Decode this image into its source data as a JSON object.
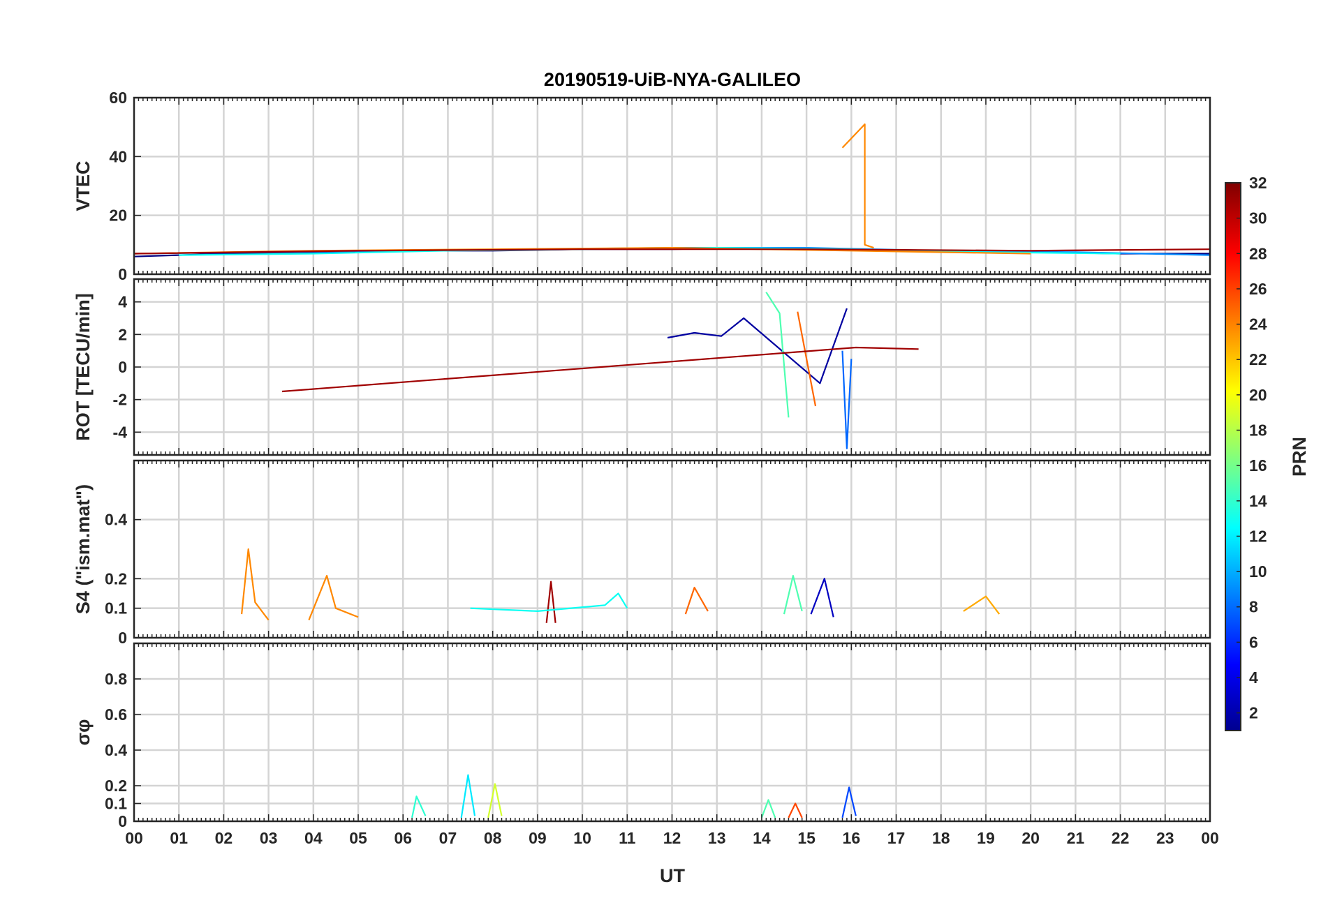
{
  "chart_data": {
    "type": "line",
    "title": "20190519-UiB-NYA-GALILEO",
    "xlabel": "UT",
    "x_ticks": [
      "00",
      "01",
      "02",
      "03",
      "04",
      "05",
      "06",
      "07",
      "08",
      "09",
      "10",
      "11",
      "12",
      "13",
      "14",
      "15",
      "16",
      "17",
      "18",
      "19",
      "20",
      "21",
      "22",
      "23",
      "00"
    ],
    "xlim": [
      0,
      24
    ],
    "panels": [
      {
        "id": "vtec",
        "ylabel": "VTEC",
        "ylim": [
          0,
          60
        ],
        "yticks": [
          "0",
          "20",
          "40",
          "60"
        ],
        "series": [
          {
            "color_prn": 1,
            "x": [
              0,
              2,
              4,
              6,
              8,
              10,
              12,
              14,
              16,
              18,
              20,
              22,
              24
            ],
            "y": [
              6,
              7,
              7.5,
              8,
              8,
              8.5,
              8.5,
              9,
              8.5,
              8,
              7.5,
              7,
              7
            ]
          },
          {
            "color_prn": 9,
            "x": [
              0,
              3,
              6,
              9,
              12,
              15,
              18,
              21,
              24
            ],
            "y": [
              7,
              7.5,
              8,
              8.5,
              9,
              9,
              8,
              7.5,
              6.5
            ]
          },
          {
            "color_prn": 13,
            "x": [
              1,
              4,
              7,
              10,
              13,
              16,
              19,
              22
            ],
            "y": [
              6.5,
              7,
              8,
              8.5,
              9,
              8.5,
              7.5,
              7
            ]
          },
          {
            "color_prn": 24,
            "x": [
              15.8,
              16.3,
              16.3,
              16.5
            ],
            "y": [
              43,
              51,
              10,
              9
            ]
          },
          {
            "color_prn": 24,
            "x": [
              0,
              4,
              8,
              12,
              16,
              20
            ],
            "y": [
              7,
              8,
              8.5,
              9,
              8,
              7
            ]
          },
          {
            "color_prn": 31,
            "x": [
              0,
              5,
              10,
              15,
              20,
              24
            ],
            "y": [
              7,
              8,
              8.5,
              8.5,
              8,
              8.5
            ]
          }
        ]
      },
      {
        "id": "rot",
        "ylabel": "ROT [TECU/min]",
        "ylim": [
          -5.4,
          5.4
        ],
        "yticks": [
          "-4",
          "-2",
          "0",
          "2",
          "4"
        ],
        "series": [
          {
            "color_prn": 2,
            "x": [
              11.9,
              12.5,
              13.1,
              13.6,
              15.3,
              15.9
            ],
            "y": [
              1.8,
              2.1,
              1.9,
              3.0,
              -1.0,
              3.6
            ]
          },
          {
            "color_prn": 8,
            "x": [
              15.8,
              15.9,
              16.0
            ],
            "y": [
              1.0,
              -5.0,
              0.5
            ]
          },
          {
            "color_prn": 15,
            "x": [
              14.1,
              14.4,
              14.6
            ],
            "y": [
              4.6,
              3.3,
              -3.1
            ]
          },
          {
            "color_prn": 25,
            "x": [
              14.8,
              15.2
            ],
            "y": [
              3.4,
              -2.4
            ]
          },
          {
            "color_prn": 31,
            "x": [
              3.3,
              16.1,
              17.5
            ],
            "y": [
              -1.5,
              1.2,
              1.1
            ]
          }
        ]
      },
      {
        "id": "s4",
        "ylabel": "S4 (\"ism.mat\")",
        "ylim": [
          0,
          0.6
        ],
        "yticks": [
          "0",
          "0.1",
          "0.2",
          "0.4"
        ],
        "series": [
          {
            "color_prn": 24,
            "x": [
              2.4,
              2.55,
              2.7,
              3.0
            ],
            "y": [
              0.08,
              0.3,
              0.12,
              0.06
            ]
          },
          {
            "color_prn": 24,
            "x": [
              3.9,
              4.3,
              4.5,
              5.0
            ],
            "y": [
              0.06,
              0.21,
              0.1,
              0.07
            ]
          },
          {
            "color_prn": 31,
            "x": [
              9.2,
              9.3,
              9.4
            ],
            "y": [
              0.05,
              0.19,
              0.05
            ]
          },
          {
            "color_prn": 15,
            "x": [
              14.5,
              14.7,
              14.9
            ],
            "y": [
              0.08,
              0.21,
              0.09
            ]
          },
          {
            "color_prn": 3,
            "x": [
              15.1,
              15.4,
              15.6
            ],
            "y": [
              0.08,
              0.2,
              0.07
            ]
          },
          {
            "color_prn": 13,
            "x": [
              7.5,
              9.0,
              10.5,
              10.8,
              11.0
            ],
            "y": [
              0.1,
              0.09,
              0.11,
              0.15,
              0.1
            ]
          },
          {
            "color_prn": 25,
            "x": [
              12.3,
              12.5,
              12.8
            ],
            "y": [
              0.08,
              0.17,
              0.09
            ]
          },
          {
            "color_prn": 23,
            "x": [
              18.5,
              19.0,
              19.3
            ],
            "y": [
              0.09,
              0.14,
              0.08
            ]
          }
        ]
      },
      {
        "id": "sigma_phi",
        "ylabel": "σφ",
        "ylim": [
          0,
          1.0
        ],
        "yticks": [
          "0",
          "0.1",
          "0.2",
          "0.4",
          "0.6",
          "0.8"
        ],
        "series": [
          {
            "color_prn": 12,
            "x": [
              7.3,
              7.45,
              7.6
            ],
            "y": [
              0.02,
              0.26,
              0.03
            ]
          },
          {
            "color_prn": 19,
            "x": [
              7.9,
              8.05,
              8.2
            ],
            "y": [
              0.02,
              0.21,
              0.03
            ]
          },
          {
            "color_prn": 7,
            "x": [
              15.8,
              15.95,
              16.1
            ],
            "y": [
              0.02,
              0.19,
              0.03
            ]
          },
          {
            "color_prn": 14,
            "x": [
              6.2,
              6.3,
              6.5
            ],
            "y": [
              0.02,
              0.14,
              0.03
            ]
          },
          {
            "color_prn": 15,
            "x": [
              14.0,
              14.15,
              14.3
            ],
            "y": [
              0.02,
              0.12,
              0.02
            ]
          },
          {
            "color_prn": 26,
            "x": [
              14.6,
              14.75,
              14.9
            ],
            "y": [
              0.02,
              0.1,
              0.02
            ]
          }
        ]
      }
    ],
    "colorbar": {
      "label": "PRN",
      "range": [
        1,
        32
      ],
      "ticks": [
        "2",
        "4",
        "6",
        "8",
        "10",
        "12",
        "14",
        "16",
        "18",
        "20",
        "22",
        "24",
        "26",
        "28",
        "30",
        "32"
      ],
      "colormap": "jet"
    },
    "grid": true
  }
}
